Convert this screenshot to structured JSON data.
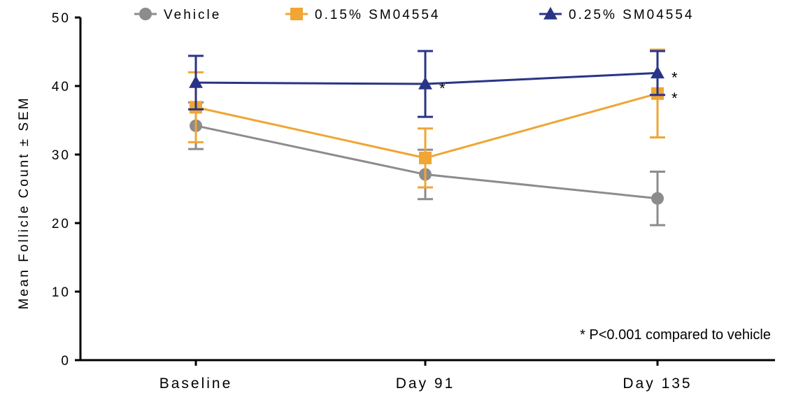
{
  "chart_data": {
    "type": "line",
    "title": "",
    "ylabel": "Mean Follicle Count ± SEM",
    "xlabel": "",
    "categories": [
      "Baseline",
      "Day 91",
      "Day 135"
    ],
    "ylim": [
      0,
      50
    ],
    "yticks": [
      0,
      10,
      20,
      30,
      40,
      50
    ],
    "grid": false,
    "legend_position": "top",
    "series": [
      {
        "name": "Vehicle",
        "marker": "circle",
        "color": "#8c8c8c",
        "values": [
          34.2,
          27.1,
          23.6
        ],
        "sem": [
          3.4,
          3.6,
          3.9
        ],
        "significant": [
          false,
          false,
          false
        ]
      },
      {
        "name": "0.15% SM04554",
        "marker": "square",
        "color": "#f0a534",
        "values": [
          36.9,
          29.5,
          38.9
        ],
        "sem": [
          5.1,
          4.3,
          6.4
        ],
        "significant": [
          false,
          false,
          true
        ]
      },
      {
        "name": "0.25% SM04554",
        "marker": "triangle",
        "color": "#2a3486",
        "values": [
          40.5,
          40.3,
          41.9
        ],
        "sem": [
          3.9,
          4.8,
          3.2
        ],
        "significant": [
          false,
          true,
          true
        ]
      }
    ],
    "significance_mark": "*",
    "footnote": "* P<0.001 compared to vehicle"
  }
}
